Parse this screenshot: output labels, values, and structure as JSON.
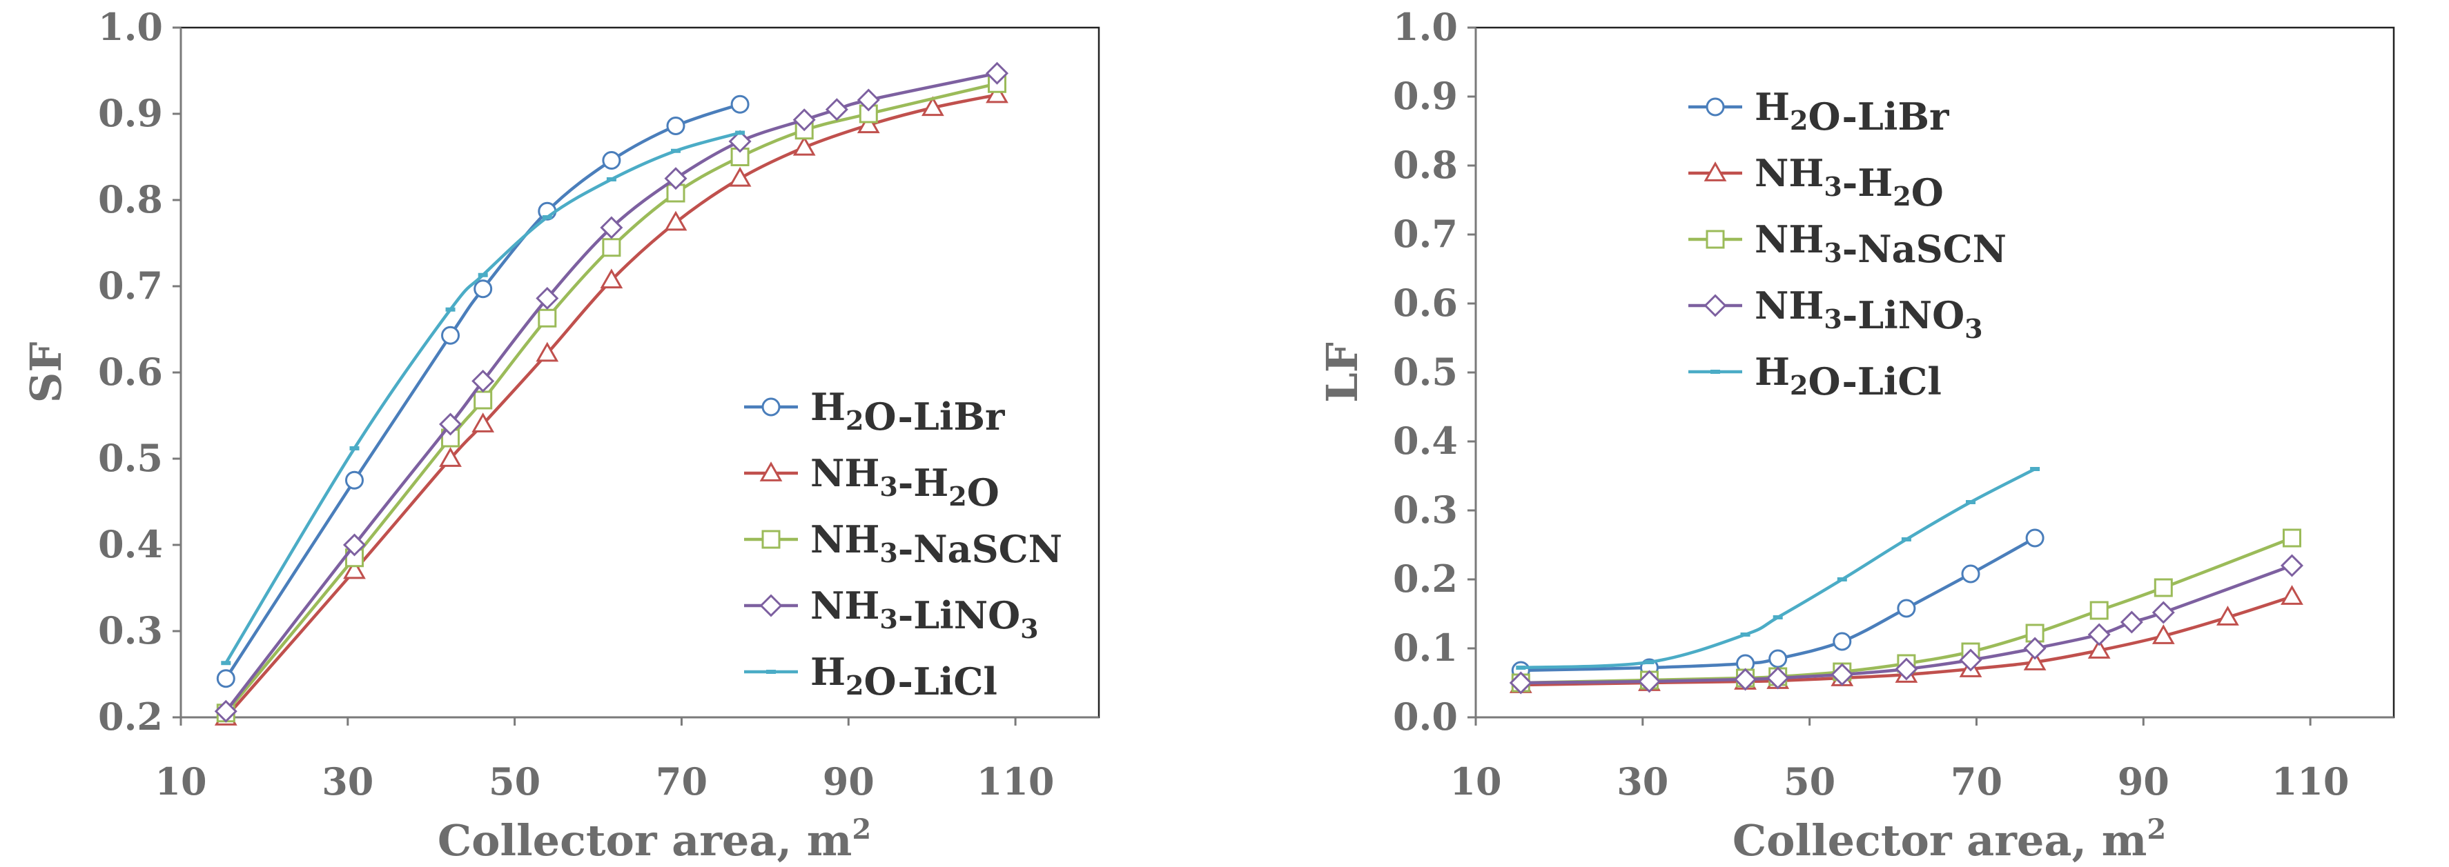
{
  "series_colors": {
    "H2O-LiBr": "#4a7ebb",
    "NH3-H2O": "#c0504d",
    "NH3-NaSCN": "#9bbb59",
    "NH3-LiNO3": "#7d60a0",
    "H2O-LiCl": "#4bacc6"
  },
  "chart_data": [
    {
      "type": "line",
      "title": "",
      "xlabel": "Collector area, m",
      "xlabel_sup": "2",
      "ylabel": "SF",
      "xlim": [
        10,
        120
      ],
      "ylim": [
        0.2,
        1.0
      ],
      "x_ticks": [
        10,
        30,
        50,
        70,
        90,
        110
      ],
      "x_tick_labels": [
        "10",
        "30",
        "50",
        "70",
        "90",
        "110"
      ],
      "y_ticks": [
        0.2,
        0.3,
        0.4,
        0.5,
        0.6,
        0.7,
        0.8,
        0.9,
        1.0
      ],
      "y_tick_labels": [
        "0.2",
        "0.3",
        "0.4",
        "0.5",
        "0.6",
        "0.7",
        "0.8",
        "0.9",
        "1.0"
      ],
      "legend_position": "bottom-right",
      "series": [
        {
          "key": "H2O-LiBr",
          "marker": "circle",
          "label": [
            {
              "t": "H"
            },
            {
              "t": "2",
              "sub": true
            },
            {
              "t": "O-LiBr"
            }
          ],
          "x": [
            15.4,
            30.8,
            42.3,
            46.2,
            53.9,
            61.6,
            69.3,
            77.0
          ],
          "y": [
            0.245,
            0.475,
            0.643,
            0.697,
            0.787,
            0.846,
            0.886,
            0.911
          ]
        },
        {
          "key": "NH3-H2O",
          "marker": "triangle",
          "label": [
            {
              "t": "NH"
            },
            {
              "t": "3",
              "sub": true
            },
            {
              "t": "-H"
            },
            {
              "t": "2",
              "sub": true
            },
            {
              "t": "O"
            }
          ],
          "x": [
            15.4,
            30.8,
            42.3,
            46.2,
            53.9,
            61.6,
            69.3,
            77.0,
            84.7,
            92.4,
            100.1,
            107.8
          ],
          "y": [
            0.2,
            0.37,
            0.5,
            0.54,
            0.622,
            0.707,
            0.774,
            0.825,
            0.861,
            0.887,
            0.907,
            0.922
          ]
        },
        {
          "key": "NH3-NaSCN",
          "marker": "square",
          "label": [
            {
              "t": "NH"
            },
            {
              "t": "3",
              "sub": true
            },
            {
              "t": "-NaSCN"
            }
          ],
          "x": [
            15.4,
            30.8,
            42.3,
            46.2,
            53.9,
            61.6,
            69.3,
            77.0,
            84.7,
            92.4,
            107.8
          ],
          "y": [
            0.205,
            0.385,
            0.524,
            0.568,
            0.663,
            0.745,
            0.808,
            0.85,
            0.881,
            0.9,
            0.935
          ]
        },
        {
          "key": "NH3-LiNO3",
          "marker": "diamond",
          "label": [
            {
              "t": "NH"
            },
            {
              "t": "3",
              "sub": true
            },
            {
              "t": "-LiNO"
            },
            {
              "t": "3",
              "sub": true
            }
          ],
          "x": [
            15.4,
            30.8,
            42.3,
            46.2,
            53.9,
            61.6,
            69.3,
            77.0,
            84.7,
            88.6,
            92.4,
            107.8
          ],
          "y": [
            0.207,
            0.4,
            0.54,
            0.59,
            0.686,
            0.768,
            0.825,
            0.868,
            0.893,
            0.905,
            0.916,
            0.947
          ]
        },
        {
          "key": "H2O-LiCl",
          "marker": "dash",
          "label": [
            {
              "t": "H"
            },
            {
              "t": "2",
              "sub": true
            },
            {
              "t": "O-LiCl"
            }
          ],
          "x": [
            15.4,
            30.8,
            42.3,
            46.2,
            53.9,
            61.6,
            69.3,
            77.0
          ],
          "y": [
            0.263,
            0.512,
            0.673,
            0.713,
            0.78,
            0.824,
            0.857,
            0.878
          ]
        }
      ]
    },
    {
      "type": "line",
      "title": "",
      "xlabel": "Collector area, m",
      "xlabel_sup": "2",
      "ylabel": "LF",
      "xlim": [
        10,
        120
      ],
      "ylim": [
        0.0,
        1.0
      ],
      "x_ticks": [
        10,
        30,
        50,
        70,
        90,
        110
      ],
      "x_tick_labels": [
        "10",
        "30",
        "50",
        "70",
        "90",
        "110"
      ],
      "y_ticks": [
        0.0,
        0.1,
        0.2,
        0.3,
        0.4,
        0.5,
        0.6,
        0.7,
        0.8,
        0.9,
        1.0
      ],
      "y_tick_labels": [
        "0.0",
        "0.1",
        "0.2",
        "0.3",
        "0.4",
        "0.5",
        "0.6",
        "0.7",
        "0.8",
        "0.9",
        "1.0"
      ],
      "legend_position": "top-left",
      "series": [
        {
          "key": "H2O-LiBr",
          "marker": "circle",
          "label": [
            {
              "t": "H"
            },
            {
              "t": "2",
              "sub": true
            },
            {
              "t": "O-LiBr"
            }
          ],
          "x": [
            15.4,
            30.8,
            42.3,
            46.2,
            53.9,
            61.6,
            69.3,
            77.0
          ],
          "y": [
            0.068,
            0.072,
            0.078,
            0.085,
            0.11,
            0.158,
            0.208,
            0.26
          ]
        },
        {
          "key": "NH3-H2O",
          "marker": "triangle",
          "label": [
            {
              "t": "NH"
            },
            {
              "t": "3",
              "sub": true
            },
            {
              "t": "-H"
            },
            {
              "t": "2",
              "sub": true
            },
            {
              "t": "O"
            }
          ],
          "x": [
            15.4,
            30.8,
            42.3,
            46.2,
            53.9,
            61.6,
            69.3,
            77.0,
            84.7,
            92.4,
            100.1,
            107.8
          ],
          "y": [
            0.047,
            0.05,
            0.052,
            0.053,
            0.057,
            0.062,
            0.07,
            0.08,
            0.097,
            0.118,
            0.145,
            0.175
          ]
        },
        {
          "key": "NH3-NaSCN",
          "marker": "square",
          "label": [
            {
              "t": "NH"
            },
            {
              "t": "3",
              "sub": true
            },
            {
              "t": "-NaSCN"
            }
          ],
          "x": [
            15.4,
            30.8,
            42.3,
            46.2,
            53.9,
            61.6,
            69.3,
            77.0,
            84.7,
            92.4,
            107.8
          ],
          "y": [
            0.05,
            0.054,
            0.057,
            0.059,
            0.066,
            0.078,
            0.095,
            0.122,
            0.155,
            0.188,
            0.26
          ]
        },
        {
          "key": "NH3-LiNO3",
          "marker": "diamond",
          "label": [
            {
              "t": "NH"
            },
            {
              "t": "3",
              "sub": true
            },
            {
              "t": "-LiNO"
            },
            {
              "t": "3",
              "sub": true
            }
          ],
          "x": [
            15.4,
            30.8,
            42.3,
            46.2,
            53.9,
            61.6,
            69.3,
            77.0,
            84.7,
            88.6,
            92.4,
            107.8
          ],
          "y": [
            0.05,
            0.052,
            0.055,
            0.057,
            0.062,
            0.07,
            0.083,
            0.1,
            0.12,
            0.138,
            0.152,
            0.22
          ]
        },
        {
          "key": "H2O-LiCl",
          "marker": "dash",
          "label": [
            {
              "t": "H"
            },
            {
              "t": "2",
              "sub": true
            },
            {
              "t": "O-LiCl"
            }
          ],
          "x": [
            15.4,
            30.8,
            42.3,
            46.2,
            53.9,
            61.6,
            69.3,
            77.0
          ],
          "y": [
            0.072,
            0.08,
            0.12,
            0.145,
            0.2,
            0.258,
            0.312,
            0.36
          ]
        }
      ]
    }
  ]
}
